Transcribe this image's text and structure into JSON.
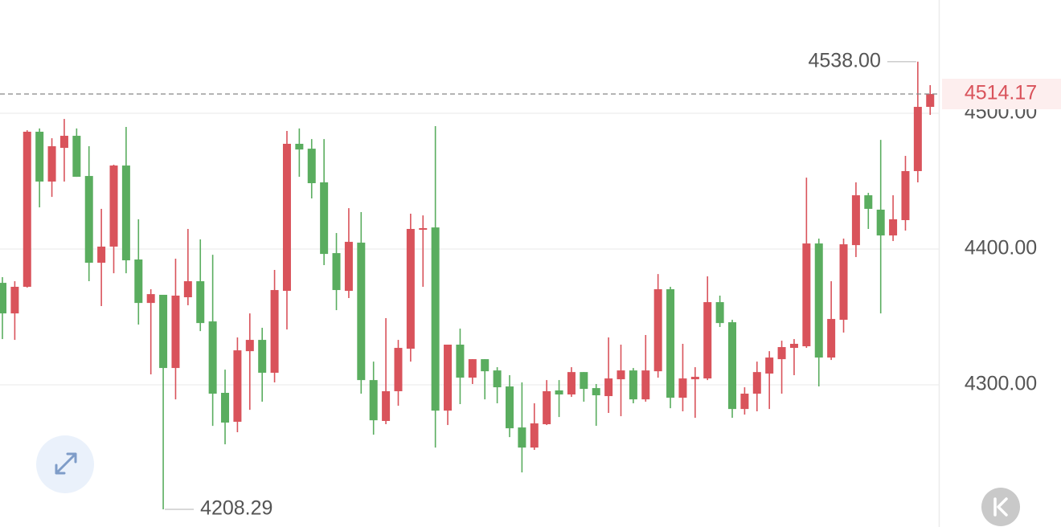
{
  "chart_data": {
    "type": "candlestick",
    "up_color": "#d9535b",
    "down_color": "#5aad5f",
    "grid": true,
    "ylim": [
      4195.3,
      4583.4
    ],
    "yticks": [
      {
        "value": 4300,
        "label": "4300.00"
      },
      {
        "value": 4400,
        "label": "4400.00"
      },
      {
        "value": 4500,
        "label": "4500.00"
      }
    ],
    "high_label": {
      "value": 4538,
      "label": "4538.00"
    },
    "low_label": 4208.29,
    "open": [
      4375.1,
      4352.6,
      4372.2,
      4486.4,
      4449.7,
      4474.5,
      4483.4,
      4453.8,
      4389.9,
      4401.8,
      4461.5,
      4392.3,
      4360.3,
      4366.3,
      4312.4,
      4364.5,
      4376.3,
      4346.7,
      4294.1,
      4272.8,
      4324.8,
      4333.1,
      4308.9,
      4369.2,
      4477.5,
      4473.9,
      4449.1,
      4397.0,
      4369.2,
      4404.7,
      4303.5,
      4273.4,
      4295.3,
      4326.6,
      4414.2,
      4415.9,
      4281.0,
      4329.6,
      4305.3,
      4318.9,
      4310.6,
      4298.8,
      4268.6,
      4253.8,
      4271.0,
      4295.9,
      4292.9,
      4309.4,
      4297.6,
      4291.7,
      4304.1,
      4310.6,
      4289.3,
      4310.0,
      4370.4,
      4290.5,
      4304.1,
      4304.7,
      4360.9,
      4346.1,
      4282.2,
      4293.5,
      4308.3,
      4318.9,
      4327.2,
      4328.4,
      4404.1,
      4320.1,
      4347.9,
      4402.9,
      4439.6,
      4429.0,
      4410.0,
      4421.3,
      4457.4,
      4504.7
    ],
    "high": [
      4379.3,
      4376.3,
      4487.5,
      4488.8,
      4481.6,
      4495.8,
      4488.8,
      4475.7,
      4429.6,
      4462.1,
      4489.9,
      4421.9,
      4370.4,
      4366.3,
      4392.9,
      4414.8,
      4407.1,
      4395.8,
      4311.2,
      4334.9,
      4352.6,
      4342.0,
      4384.6,
      4487.0,
      4488.8,
      4481.0,
      4481.0,
      4411.8,
      4430.1,
      4427.2,
      4317.1,
      4349.1,
      4333.1,
      4426.0,
      4424.8,
      4490.5,
      4329.6,
      4341.4,
      4318.9,
      4318.9,
      4313.0,
      4307.1,
      4301.8,
      4286.4,
      4303.5,
      4303.5,
      4313.0,
      4309.4,
      4300.6,
      4334.9,
      4329.6,
      4312.4,
      4336.7,
      4381.6,
      4372.2,
      4330.2,
      4313.0,
      4379.9,
      4365.7,
      4347.9,
      4298.2,
      4317.1,
      4324.8,
      4332.5,
      4333.7,
      4452.6,
      4407.7,
      4376.3,
      4407.7,
      4449.1,
      4441.4,
      4480.4,
      4439.6,
      4468.6,
      4538.0,
      4520.7
    ],
    "low": [
      4333.7,
      4333.1,
      4371.6,
      4430.7,
      4438.4,
      4449.7,
      4453.2,
      4376.3,
      4358.0,
      4382.2,
      4382.2,
      4344.4,
      4307.7,
      4208.29,
      4289.3,
      4358.6,
      4339.6,
      4269.8,
      4256.2,
      4265.1,
      4281.6,
      4287.6,
      4301.8,
      4340.8,
      4453.2,
      4437.3,
      4388.2,
      4355.0,
      4363.9,
      4293.5,
      4263.3,
      4271.0,
      4284.6,
      4317.1,
      4372.2,
      4253.8,
      4270.4,
      4285.8,
      4300.6,
      4289.3,
      4286.4,
      4261.5,
      4235.5,
      4252.1,
      4270.4,
      4276.3,
      4291.1,
      4287.6,
      4269.8,
      4279.3,
      4276.9,
      4286.4,
      4287.6,
      4305.3,
      4282.8,
      4280.5,
      4275.7,
      4303.5,
      4342.6,
      4275.7,
      4278.1,
      4280.5,
      4282.2,
      4293.5,
      4307.1,
      4327.2,
      4298.8,
      4318.3,
      4338.5,
      4394.1,
      4414.8,
      4352.6,
      4405.9,
      4413.6,
      4449.1,
      4498.8
    ],
    "close": [
      4352.6,
      4372.2,
      4486.4,
      4449.7,
      4475.7,
      4483.4,
      4453.2,
      4389.9,
      4401.8,
      4461.5,
      4391.7,
      4360.3,
      4366.8,
      4312.4,
      4365.7,
      4376.3,
      4345.5,
      4293.5,
      4272.2,
      4325.4,
      4333.1,
      4308.9,
      4369.8,
      4477.5,
      4473.3,
      4448.5,
      4396.4,
      4369.8,
      4405.3,
      4303.5,
      4273.9,
      4295.3,
      4327.2,
      4414.8,
      4415.4,
      4281.0,
      4329.6,
      4305.3,
      4318.9,
      4310.0,
      4298.2,
      4268.0,
      4253.8,
      4271.6,
      4295.3,
      4292.9,
      4309.4,
      4297.0,
      4292.3,
      4304.7,
      4310.6,
      4289.3,
      4310.6,
      4370.4,
      4290.5,
      4304.7,
      4305.9,
      4360.9,
      4345.5,
      4282.2,
      4293.5,
      4309.4,
      4320.1,
      4327.8,
      4330.2,
      4404.1,
      4320.1,
      4348.5,
      4403.5,
      4439.6,
      4429.6,
      4410.0,
      4421.9,
      4457.4,
      4504.7,
      4514.17
    ]
  }
}
